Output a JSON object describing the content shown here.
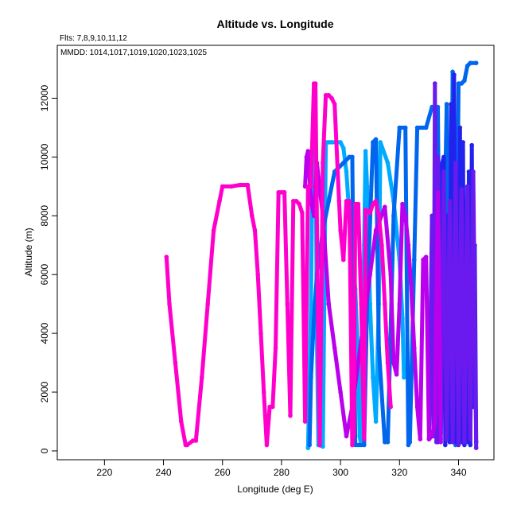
{
  "chart_data": {
    "type": "line",
    "title": "Altitude vs. Longitude",
    "notes": [
      "Flts: 7,8,9,10,11,12",
      "MMDD: 1014,1017,1019,1020,1023,1025"
    ],
    "xlabel": "Longitude (deg E)",
    "ylabel": "Altitude (m)",
    "xlim": [
      204,
      352
    ],
    "ylim": [
      -300,
      13800
    ],
    "xticks": [
      220,
      240,
      260,
      280,
      300,
      320,
      340
    ],
    "yticks": [
      0,
      2000,
      4000,
      6000,
      8000,
      10000,
      12000
    ],
    "grid": false,
    "legend": "none",
    "series": [
      {
        "color": "#00aaff",
        "x": [
          289,
          290,
          290.5,
          291,
          291.5,
          292,
          292.5,
          294,
          294.5,
          295,
          296,
          297,
          300,
          301,
          302,
          303,
          305,
          306,
          306.5,
          307,
          308,
          308.5,
          309,
          310,
          311,
          312,
          313,
          313.5,
          316,
          318,
          320,
          321,
          321.5
        ],
        "y": [
          100,
          5000,
          10000,
          12000,
          11500,
          4000,
          200,
          150,
          5000,
          10500,
          10500,
          10500,
          10500,
          10300,
          9500,
          8000,
          5500,
          3000,
          500,
          200,
          7000,
          10200,
          9000,
          5000,
          2500,
          1000,
          5000,
          10500,
          9800,
          8500,
          6500,
          4500,
          2500
        ]
      },
      {
        "color": "#0066ee",
        "x": [
          289.5,
          290,
          291,
          292,
          294,
          296,
          298,
          301,
          303,
          304,
          304.5,
          305,
          306,
          308,
          309,
          311,
          312,
          313,
          315,
          316,
          318,
          320,
          322,
          323,
          323.5,
          325,
          326,
          327,
          328,
          329,
          331,
          333,
          334,
          336,
          337,
          338,
          339,
          340,
          341,
          342,
          343,
          344,
          346
        ],
        "y": [
          200,
          2500,
          4500,
          6000,
          7500,
          8500,
          9500,
          9800,
          10000,
          10000,
          5000,
          200,
          200,
          200,
          5000,
          10500,
          10600,
          3500,
          300,
          300,
          8000,
          11000,
          11000,
          200,
          300,
          6500,
          11000,
          11000,
          11000,
          11000,
          11700,
          11700,
          400,
          11800,
          300,
          12900,
          200,
          12500,
          12500,
          12600,
          13100,
          13200,
          13200
        ]
      },
      {
        "color": "#2222ee",
        "x": [
          333,
          334,
          334.5,
          335,
          335.5,
          336,
          337,
          337.5,
          338,
          338.5,
          339,
          339.5,
          340,
          340.5,
          341,
          341.5,
          342,
          342.5,
          343,
          343.5,
          344,
          344.5,
          345,
          345.5,
          346
        ],
        "y": [
          300,
          9500,
          9800,
          10000,
          200,
          8000,
          300,
          11800,
          400,
          12800,
          300,
          9000,
          500,
          11000,
          300,
          10500,
          200,
          8500,
          300,
          9500,
          200,
          10400,
          1500,
          7000,
          300
        ]
      },
      {
        "color": "#6a1aee",
        "x": [
          330,
          331,
          331.5,
          332,
          332.5,
          333,
          334,
          335,
          336,
          337,
          338,
          339,
          340,
          341,
          342,
          343,
          344,
          345,
          346
        ],
        "y": [
          400,
          8000,
          500,
          12500,
          300,
          10000,
          600,
          9500,
          400,
          8500,
          300,
          9800,
          200,
          8900,
          300,
          9000,
          400,
          9500,
          100
        ]
      },
      {
        "color": "#bb00ee",
        "x": [
          288,
          288.5,
          289,
          290,
          291,
          292,
          294,
          296,
          298,
          300,
          302,
          304,
          306,
          308,
          310,
          312,
          315,
          317,
          318,
          319,
          320,
          321,
          322,
          323,
          324,
          325,
          326,
          327,
          328,
          329,
          330,
          331,
          332,
          333,
          334
        ],
        "y": [
          9000,
          10000,
          10200,
          8500,
          8000,
          9800,
          8000,
          5000,
          3500,
          2000,
          500,
          1500,
          3000,
          4500,
          6000,
          7500,
          8300,
          6000,
          3000,
          2600,
          5000,
          8400,
          8000,
          7000,
          5500,
          3500,
          1500,
          400,
          6500,
          6600,
          400,
          500,
          1000,
          8800,
          300
        ]
      },
      {
        "color": "#ff00cc",
        "x": [
          241,
          242,
          244,
          246,
          247.5,
          248,
          250,
          251,
          253,
          255,
          257,
          259,
          260,
          263,
          266,
          268.5,
          270,
          271,
          272,
          273,
          274,
          275,
          276,
          277,
          278,
          279,
          280,
          281,
          282,
          283,
          284,
          285,
          286,
          287,
          288,
          289,
          290,
          291,
          291.5,
          292.5,
          293,
          294,
          295,
          296,
          297,
          298,
          299.5,
          300,
          301,
          302,
          303,
          304,
          304.5,
          305,
          306,
          307,
          308,
          308.5,
          310,
          311,
          312,
          313,
          314,
          315,
          316,
          317
        ],
        "y": [
          6600,
          5000,
          3000,
          1000,
          200,
          200,
          350,
          350,
          2500,
          5000,
          7500,
          8500,
          9000,
          9000,
          9050,
          9050,
          8000,
          7500,
          6000,
          4000,
          2000,
          200,
          1500,
          1500,
          3500,
          8800,
          8800,
          8800,
          5000,
          1200,
          8500,
          8500,
          8400,
          8100,
          1000,
          9000,
          9000,
          12500,
          12500,
          3000,
          200,
          9800,
          12100,
          12100,
          12000,
          11800,
          8500,
          7500,
          6500,
          8500,
          8500,
          200,
          600,
          8400,
          8400,
          5000,
          400,
          8200,
          8100,
          8400,
          8500,
          8000,
          7000,
          5000,
          3000,
          1500
        ]
      }
    ]
  }
}
